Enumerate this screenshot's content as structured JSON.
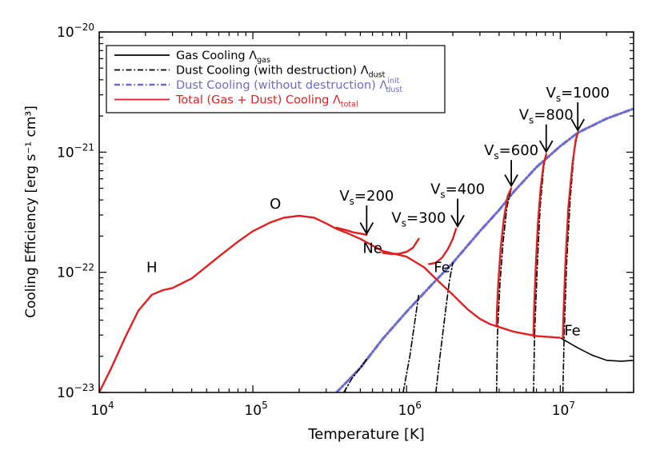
{
  "chart_data": {
    "type": "line",
    "xlabel": "Temperature [K]",
    "ylabel": "Cooling Efficiency [erg s⁻¹ cm³]",
    "xscale": "log",
    "yscale": "log",
    "xlim": [
      10000,
      30000000
    ],
    "ylim": [
      1e-23,
      1e-20
    ],
    "grid": false,
    "legend_position": "top-left",
    "x_ticks": [
      {
        "value": 10000,
        "mant": "10",
        "exp": "4"
      },
      {
        "value": 100000,
        "mant": "10",
        "exp": "5"
      },
      {
        "value": 1000000,
        "mant": "10",
        "exp": "6"
      },
      {
        "value": 10000000,
        "mant": "10",
        "exp": "7"
      }
    ],
    "y_ticks": [
      {
        "value": 1e-23,
        "mant": "10",
        "exp": "−23"
      },
      {
        "value": 1e-22,
        "mant": "10",
        "exp": "−22"
      },
      {
        "value": 1e-21,
        "mant": "10",
        "exp": "−21"
      },
      {
        "value": 1e-20,
        "mant": "10",
        "exp": "−20"
      }
    ],
    "legend": [
      {
        "label": "Gas Cooling Λ",
        "sub": "gas",
        "sup": "",
        "color": "#000000",
        "dash": "solid"
      },
      {
        "label": "Dust Cooling (with destruction) Λ",
        "sub": "dust",
        "sup": "",
        "color": "#000000",
        "dash": "dashdot"
      },
      {
        "label": "Dust Cooling (without destruction) Λ",
        "sub": "dust",
        "sup": "init",
        "color": "#6b6bd0",
        "dash": "dashdot"
      },
      {
        "label": "Total (Gas + Dust) Cooling Λ",
        "sub": "total",
        "sup": "",
        "color": "#e02020",
        "dash": "solid"
      }
    ],
    "series": [
      {
        "name": "Gas Cooling",
        "color": "#000000",
        "style": "solid",
        "x": [
          10000000,
          13000000,
          16000000,
          20000000,
          25000000,
          30000000
        ],
        "y": [
          2.85e-23,
          2.35e-23,
          2.05e-23,
          1.85e-23,
          1.82e-23,
          1.85e-23
        ]
      },
      {
        "name": "Dust Cooling (without destruction)",
        "color": "#6b6bd0",
        "style": "dashdot",
        "x": [
          350000,
          500000,
          700000,
          1000000,
          1500000,
          2000000,
          3000000,
          4000000,
          5000000,
          7000000,
          10000000,
          13000000,
          20000000,
          30000000
        ],
        "y": [
          1e-23,
          1.6e-23,
          2.8e-23,
          4.7e-23,
          8.2e-23,
          1.2e-22,
          2.2e-22,
          3.3e-22,
          4.7e-22,
          7.5e-22,
          1.12e-21,
          1.45e-21,
          1.9e-21,
          2.3e-21
        ]
      },
      {
        "name": "Dust Cooling (with destruction), Vs=200",
        "color": "#000000",
        "style": "dashdot",
        "x": [
          390000,
          440000,
          500000,
          560000
        ],
        "y": [
          1e-23,
          1.3e-23,
          1.6e-23,
          1.95e-23
        ]
      },
      {
        "name": "Dust Cooling (with destruction), Vs=300",
        "color": "#000000",
        "style": "dashdot",
        "x": [
          950000,
          1050000,
          1150000,
          1200000
        ],
        "y": [
          1e-23,
          2e-23,
          4.5e-23,
          6.5e-23
        ]
      },
      {
        "name": "Dust Cooling (with destruction), Vs=400",
        "color": "#000000",
        "style": "dashdot",
        "x": [
          1550000,
          1650000,
          1800000,
          1900000,
          2000000
        ],
        "y": [
          1e-23,
          2e-23,
          5e-23,
          8.5e-23,
          1.2e-22
        ]
      },
      {
        "name": "Dust Cooling (with destruction), Vs=600",
        "color": "#000000",
        "style": "dashdot",
        "x": [
          3850000,
          3900000,
          4050000,
          4250000,
          4500000,
          4800000
        ],
        "y": [
          1e-23,
          3e-23,
          8e-23,
          1.8e-22,
          3.5e-22,
          5e-22
        ]
      },
      {
        "name": "Dust Cooling (with destruction), Vs=800",
        "color": "#000000",
        "style": "dashdot",
        "x": [
          6700000,
          6800000,
          7100000,
          7400000,
          7800000,
          8100000
        ],
        "y": [
          1e-23,
          3e-23,
          1.2e-22,
          3.5e-22,
          7.5e-22,
          9.6e-22
        ]
      },
      {
        "name": "Dust Cooling (with destruction), Vs=1000",
        "color": "#000000",
        "style": "dashdot",
        "x": [
          10400000,
          10600000,
          11000000,
          11600000,
          12300000,
          13000000
        ],
        "y": [
          1e-23,
          3e-23,
          1.2e-22,
          4e-22,
          1e-21,
          1.45e-21
        ]
      },
      {
        "name": "Total, base",
        "color": "#e02020",
        "style": "solid",
        "x": [
          10000,
          12000,
          15000,
          18000,
          22000,
          26000,
          30000,
          40000,
          60000,
          80000,
          100000,
          130000,
          160000,
          200000,
          250000,
          300000,
          350000,
          400000,
          500000,
          700000,
          1000000,
          1300000,
          1600000,
          2000000,
          2500000,
          3000000,
          3500000,
          4000000,
          5000000,
          7000000,
          10000000
        ],
        "y": [
          1e-23,
          1.6e-23,
          3e-23,
          4.8e-23,
          6.5e-23,
          7.1e-23,
          7.4e-23,
          8.9e-23,
          1.35e-22,
          1.8e-22,
          2.2e-22,
          2.6e-22,
          2.85e-22,
          2.95e-22,
          2.85e-22,
          2.55e-22,
          2.3e-22,
          2.15e-22,
          1.9e-22,
          1.5e-22,
          1.35e-22,
          1.1e-22,
          8.5e-23,
          6.5e-23,
          4.9e-23,
          4.1e-23,
          3.7e-23,
          3.5e-23,
          3.2e-23,
          2.95e-23,
          2.85e-23
        ]
      },
      {
        "name": "Total, Vs=200",
        "color": "#e02020",
        "style": "solid",
        "x": [
          350000,
          400000,
          450000,
          500000,
          550000
        ],
        "y": [
          2.35e-22,
          2.25e-22,
          2.15e-22,
          2.1e-22,
          2.05e-22
        ]
      },
      {
        "name": "Total, Vs=300",
        "color": "#e02020",
        "style": "solid",
        "x": [
          700000,
          800000,
          900000,
          1000000,
          1100000,
          1200000
        ],
        "y": [
          1.45e-22,
          1.42e-22,
          1.43e-22,
          1.48e-22,
          1.6e-22,
          1.9e-22
        ]
      },
      {
        "name": "Total, Vs=400",
        "color": "#e02020",
        "style": "solid",
        "x": [
          1400000,
          1550000,
          1700000,
          1850000,
          2000000,
          2100000
        ],
        "y": [
          1.17e-22,
          1.2e-22,
          1.32e-22,
          1.55e-22,
          1.9e-22,
          2.3e-22
        ]
      },
      {
        "name": "Total, Vs=600",
        "color": "#e02020",
        "style": "solid",
        "x": [
          3850000,
          3880000,
          3950000,
          4100000,
          4300000,
          4550000,
          4800000
        ],
        "y": [
          3.6e-23,
          5e-23,
          8e-23,
          1.6e-22,
          2.8e-22,
          4.3e-22,
          5e-22
        ]
      },
      {
        "name": "Total, Vs=800",
        "color": "#e02020",
        "style": "solid",
        "x": [
          6700000,
          6750000,
          6900000,
          7150000,
          7450000,
          7800000,
          8100000
        ],
        "y": [
          2.95e-23,
          4.5e-23,
          1e-22,
          2.5e-22,
          5e-22,
          8e-22,
          9.6e-22
        ]
      },
      {
        "name": "Total, Vs=1000",
        "color": "#e02020",
        "style": "solid",
        "x": [
          10400000,
          10500000,
          10800000,
          11300000,
          12000000,
          12600000,
          13000000
        ],
        "y": [
          2.85e-23,
          4.5e-23,
          1.2e-22,
          3.5e-22,
          8e-22,
          1.25e-21,
          1.45e-21
        ]
      }
    ],
    "annotations": [
      {
        "text": "H",
        "x": 22000,
        "y": 1e-22
      },
      {
        "text": "O",
        "x": 140000,
        "y": 3.4e-22
      },
      {
        "text": "Ne",
        "x": 600000,
        "y": 1.45e-22
      },
      {
        "text": "Fe",
        "x": 1700000,
        "y": 1e-22
      },
      {
        "text": "Fe",
        "x": 12000000,
        "y": 3e-23
      }
    ],
    "arrows": [
      {
        "label": "V",
        "sub": "s",
        "value": "=200",
        "x": 550000,
        "y_tip": 2e-22,
        "y_tail": 3.6e-22
      },
      {
        "label": "V",
        "sub": "s",
        "value": "=300",
        "x": 1200000,
        "y_tip": null,
        "y_tail": null
      },
      {
        "label": "V",
        "sub": "s",
        "value": "=400",
        "x": 2150000,
        "y_tip": 2.3e-22,
        "y_tail": 4.1e-22
      },
      {
        "label": "V",
        "sub": "s",
        "value": "=600",
        "x": 4800000,
        "y_tip": 5e-22,
        "y_tail": 8.6e-22
      },
      {
        "label": "V",
        "sub": "s",
        "value": "=800",
        "x": 8100000,
        "y_tip": 9.6e-22,
        "y_tail": 1.7e-21
      },
      {
        "label": "V",
        "sub": "s",
        "value": "=1000",
        "x": 13000000,
        "y_tip": 1.45e-21,
        "y_tail": 2.6e-21
      }
    ]
  }
}
